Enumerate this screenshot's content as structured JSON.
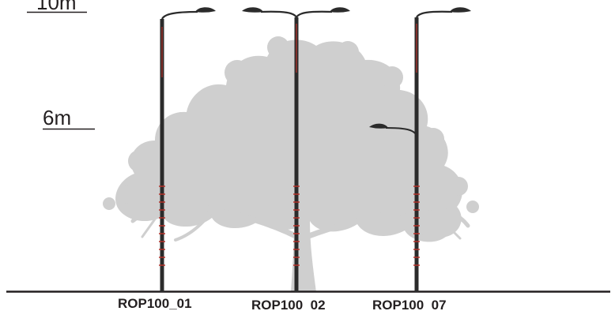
{
  "height_markers": [
    {
      "label": "10m"
    },
    {
      "label": "6m"
    }
  ],
  "poles": [
    {
      "label": "ROP100_01",
      "arms": "single"
    },
    {
      "label": "ROP100  02",
      "arms": "double"
    },
    {
      "label": "ROP100  07",
      "arms": "single-plus-low"
    }
  ],
  "colors": {
    "pole": "#2b2b2b",
    "accent": "#b8322a",
    "tree": "#cfcfcf",
    "ground": "#231f20",
    "text": "#231f20"
  },
  "icons": [
    "tree-silhouette",
    "street-lamp-head"
  ]
}
